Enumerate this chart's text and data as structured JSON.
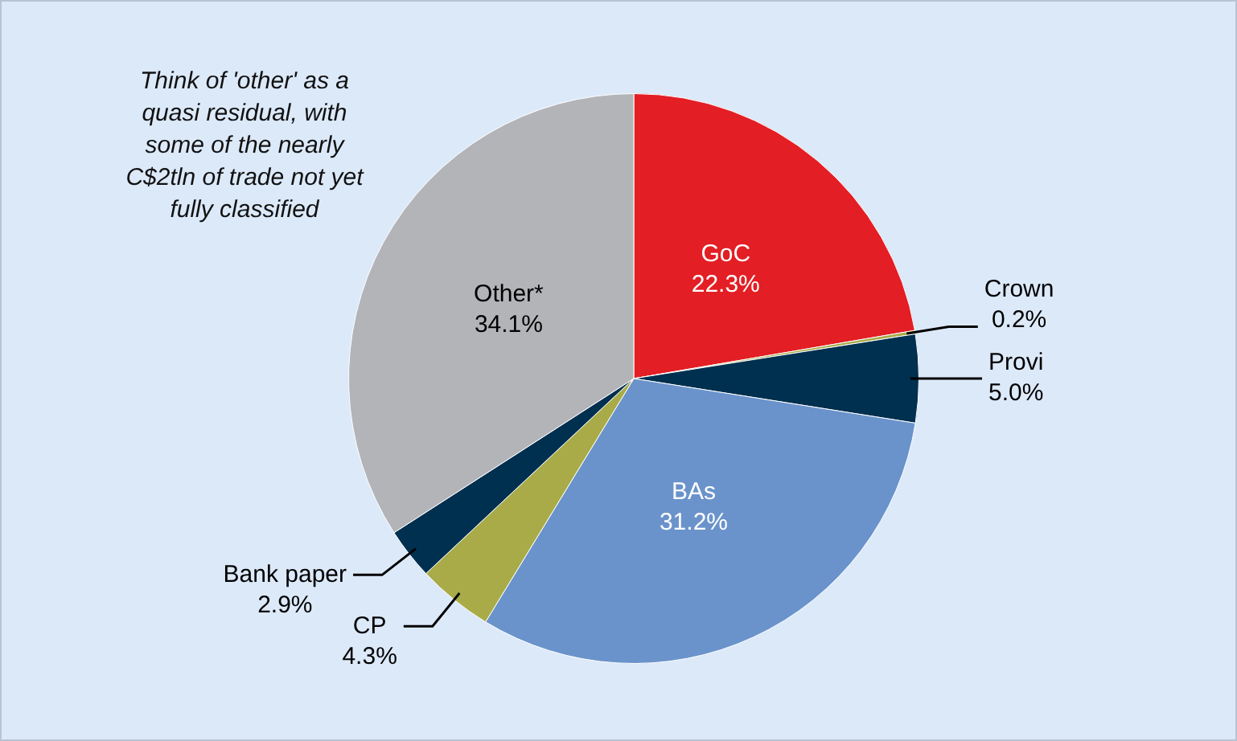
{
  "chart_data": {
    "type": "pie",
    "categories": [
      "GoC",
      "Crown",
      "Provi",
      "BAs",
      "CP",
      "Bank paper",
      "Other*"
    ],
    "values": [
      22.3,
      0.2,
      5.0,
      31.2,
      4.3,
      2.9,
      34.1
    ],
    "colors": [
      "#e31e24",
      "#a8ab48",
      "#00304f",
      "#6a93cb",
      "#a8ab48",
      "#00304f",
      "#b3b4b8"
    ],
    "value_labels": [
      "22.3%",
      "0.2%",
      "5.0%",
      "31.2%",
      "4.3%",
      "2.9%",
      "34.1%"
    ],
    "legend": false,
    "annotations": [
      "Think of 'other' as a quasi residual, with some of the nearly C$2tln of trade not yet fully classified"
    ]
  }
}
